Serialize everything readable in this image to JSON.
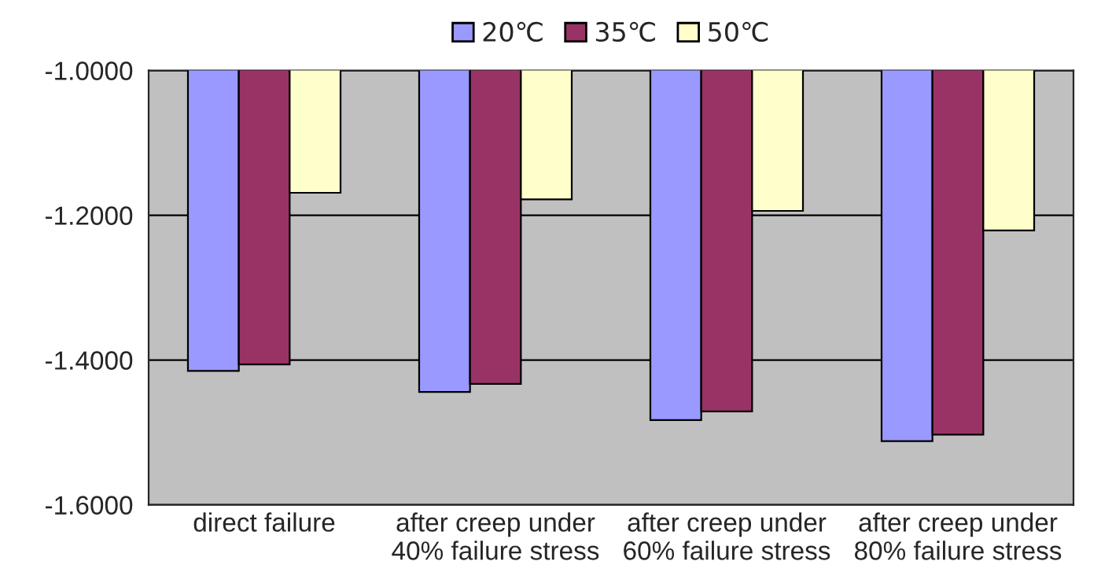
{
  "chart_data": {
    "type": "bar",
    "categories": [
      "direct failure",
      "after creep under\n40% failure stress",
      "after creep under\n60% failure stress",
      "after creep under\n80% failure stress"
    ],
    "series": [
      {
        "name": "20℃",
        "color": "#9999ff",
        "values": [
          -1.415,
          -1.444,
          -1.483,
          -1.512
        ]
      },
      {
        "name": "35℃",
        "color": "#993366",
        "values": [
          -1.406,
          -1.433,
          -1.471,
          -1.503
        ]
      },
      {
        "name": "50℃",
        "color": "#ffffcc",
        "values": [
          -1.169,
          -1.178,
          -1.194,
          -1.221
        ]
      }
    ],
    "ylim": [
      -1.6,
      -1.0
    ],
    "yticks": [
      {
        "value": -1.6,
        "label": "-1.6000"
      },
      {
        "value": -1.4,
        "label": "-1.4000"
      },
      {
        "value": -1.2,
        "label": "-1.2000"
      },
      {
        "value": -1.0,
        "label": "-1.0000"
      }
    ],
    "grid": "y",
    "legend": "top"
  }
}
